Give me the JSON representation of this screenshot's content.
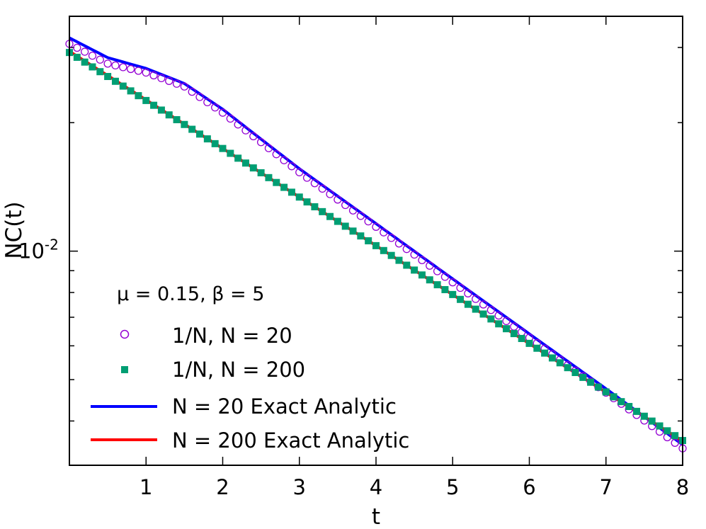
{
  "chart_data": {
    "type": "line",
    "title": "",
    "xlabel": "t",
    "ylabel": "NC(t)",
    "xlim": [
      0,
      8
    ],
    "ylim": [
      0.00315,
      0.0355
    ],
    "yscale": "log",
    "grid": false,
    "legend_position": "bottom-left",
    "x_ticks": [
      {
        "value": 1,
        "label": "1"
      },
      {
        "value": 2,
        "label": "2"
      },
      {
        "value": 3,
        "label": "3"
      },
      {
        "value": 4,
        "label": "4"
      },
      {
        "value": 5,
        "label": "5"
      },
      {
        "value": 6,
        "label": "6"
      },
      {
        "value": 7,
        "label": "7"
      },
      {
        "value": 8,
        "label": "8"
      }
    ],
    "y_tick_labels": [
      {
        "value": 0.01,
        "base": "10",
        "exponent": "-2"
      }
    ],
    "y_minor_ticks": [
      0.004,
      0.005,
      0.006,
      0.007,
      0.008,
      0.009,
      0.02,
      0.03
    ],
    "annotation": "μ = 0.15, β = 5",
    "series": [
      {
        "name": "1/N, N = 20",
        "kind": "scatter",
        "marker": "circle-open",
        "color": "#9400d3",
        "x_start": 0,
        "x_step": 0.1,
        "x_end": 8,
        "anchors": [
          [
            0,
            0.0306
          ],
          [
            0.5,
            0.0275
          ],
          [
            1,
            0.0262
          ],
          [
            1.5,
            0.0243
          ],
          [
            2,
            0.0211
          ],
          [
            2.5,
            0.018
          ],
          [
            3,
            0.0153
          ],
          [
            4,
            0.0114
          ],
          [
            5,
            0.00845
          ],
          [
            6,
            0.00627
          ],
          [
            7,
            0.00466
          ],
          [
            8,
            0.00345
          ]
        ]
      },
      {
        "name": "1/N, N = 200",
        "kind": "scatter",
        "marker": "square-filled",
        "color": "#009e73",
        "x_start": 0,
        "x_step": 0.1,
        "x_end": 8,
        "anchors": [
          [
            0,
            0.0292
          ],
          [
            2,
            0.0174
          ],
          [
            4,
            0.0103
          ],
          [
            6,
            0.00608
          ],
          [
            8,
            0.0036
          ]
        ]
      },
      {
        "name": "N = 20 Exact Analytic",
        "kind": "line",
        "color": "#0000ff",
        "anchors": [
          [
            0,
            0.0316
          ],
          [
            0.5,
            0.0284
          ],
          [
            1,
            0.0268
          ],
          [
            1.5,
            0.0247
          ],
          [
            2,
            0.0215
          ],
          [
            2.5,
            0.0183
          ],
          [
            3,
            0.0156
          ],
          [
            4,
            0.0116
          ],
          [
            5,
            0.00861
          ],
          [
            6,
            0.0064
          ],
          [
            7,
            0.00476
          ],
          [
            8,
            0.00352
          ]
        ]
      },
      {
        "name": "N = 200 Exact Analytic",
        "kind": "line",
        "color": "#ff0000",
        "anchors": [
          [
            0,
            0.0294
          ],
          [
            2,
            0.0174
          ],
          [
            4,
            0.0103
          ],
          [
            6,
            0.00607
          ],
          [
            8,
            0.00359
          ]
        ]
      }
    ]
  }
}
